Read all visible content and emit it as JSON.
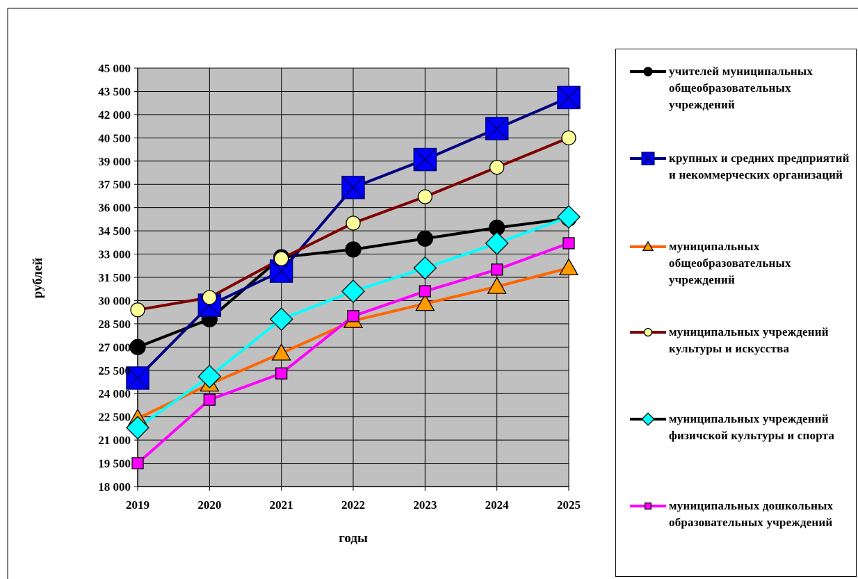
{
  "chart_data": {
    "type": "line",
    "title": "",
    "xlabel": "годы",
    "ylabel": "рублей",
    "categories": [
      "2019",
      "2020",
      "2021",
      "2022",
      "2023",
      "2024",
      "2025"
    ],
    "ylim": [
      18000,
      45000
    ],
    "yticks": [
      18000,
      19500,
      21000,
      22500,
      24000,
      25500,
      27000,
      28500,
      30000,
      31500,
      33000,
      34500,
      36000,
      37500,
      39000,
      40500,
      42000,
      43500,
      45000
    ],
    "ytick_labels": [
      "18 000",
      "19 500",
      "21 000",
      "22 500",
      "24 000",
      "25 500",
      "27 000",
      "28 500",
      "30 000",
      "31 500",
      "33 000",
      "34 500",
      "36 000",
      "37 500",
      "39 000",
      "40 500",
      "42 000",
      "43 500",
      "45 000"
    ],
    "grid": "horizontal",
    "plot_background": "#c0c0c0",
    "legend_position": "right",
    "series": [
      {
        "name": "учителей муниципальных общеобразовательных учреждений",
        "values": [
          27000,
          28800,
          32800,
          33300,
          34000,
          34700,
          35300
        ],
        "line_color": "#000000",
        "marker": "circle",
        "marker_fill": "#000000"
      },
      {
        "name": "крупных и средних предприятий и некоммерческих организаций",
        "values": [
          25000,
          29700,
          31900,
          37300,
          39100,
          41100,
          43100
        ],
        "line_color": "#000080",
        "marker": "square-x",
        "marker_fill": "#0000ff"
      },
      {
        "name": "муниципальных общеобразовательных учреждений",
        "values": [
          22400,
          24600,
          26600,
          28700,
          29800,
          30900,
          32100
        ],
        "line_color": "#ff6600",
        "marker": "triangle",
        "marker_fill": "#ff9900"
      },
      {
        "name": "муниципальных учреждений культуры и искусства",
        "values": [
          29400,
          30200,
          32700,
          35000,
          36700,
          38600,
          40500
        ],
        "line_color": "#800000",
        "marker": "circle",
        "marker_fill": "#ffff99"
      },
      {
        "name": "муниципальных учреждений физичской культуры и спорта",
        "values": [
          21800,
          25100,
          28800,
          30600,
          32100,
          33700,
          35400
        ],
        "line_color": "#00ffff",
        "marker": "diamond",
        "marker_fill": "#00ffff",
        "legend_line_color": "#000000"
      },
      {
        "name": "муниципальных дошкольных образовательных учреждений",
        "values": [
          19500,
          23600,
          25300,
          29000,
          30600,
          32000,
          33700
        ],
        "line_color": "#ff00ff",
        "marker": "square",
        "marker_fill": "#ff00ff"
      }
    ]
  }
}
